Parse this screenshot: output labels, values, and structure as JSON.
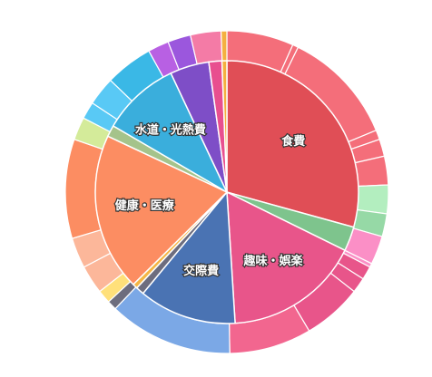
{
  "chart_data": {
    "type": "pie",
    "inner_series": {
      "labels": [
        "食費",
        "",
        "趣味・娯楽",
        "交際費",
        "",
        "",
        "健康・医療",
        "",
        "水道・光熱費",
        "",
        "",
        ""
      ],
      "values": [
        29.3,
        3.0,
        16.7,
        12.0,
        1.0,
        0.6,
        19.4,
        1.4,
        9.6,
        4.8,
        1.6,
        0.6
      ],
      "colors": [
        "#e04e56",
        "#7ec48d",
        "#e8558a",
        "#4a73b3",
        "#6d6d7e",
        "#f4b644",
        "#fc8d62",
        "#a5c38b",
        "#3aaedc",
        "#7e4ec7",
        "#e84f8f",
        "#f4b040"
      ]
    },
    "outer_series": {
      "values": [
        7.0,
        0.6,
        12.0,
        1.0,
        1.8,
        3.0,
        3.0,
        2.4,
        3.0,
        0.4,
        1.4,
        1.6,
        6.2,
        8.6,
        13.0,
        1.0,
        1.4,
        3.0,
        3.2,
        10.4,
        2.4,
        1.8,
        3.0,
        5.0,
        2.2,
        2.4,
        3.2,
        0.6
      ],
      "colors": [
        "#f46e7a",
        "#f46e7a",
        "#f46e7a",
        "#f46e7a",
        "#f46e7a",
        "#f46e7a",
        "#b3eebf",
        "#96d9a6",
        "#fb8fc6",
        "#fb8fc6",
        "#e8558a",
        "#e8558a",
        "#e8558a",
        "#f2668f",
        "#7ba8e6",
        "#6d6d7e",
        "#ffe07a",
        "#fcb79a",
        "#fcb79a",
        "#fc8d62",
        "#d4eb9a",
        "#59c9f5",
        "#59c9f5",
        "#3ab8e6",
        "#b860e3",
        "#9b57dd",
        "#f47ba6",
        "#f4b040"
      ]
    },
    "start_angle": 0,
    "direction": "clockwise",
    "legend": "none"
  }
}
